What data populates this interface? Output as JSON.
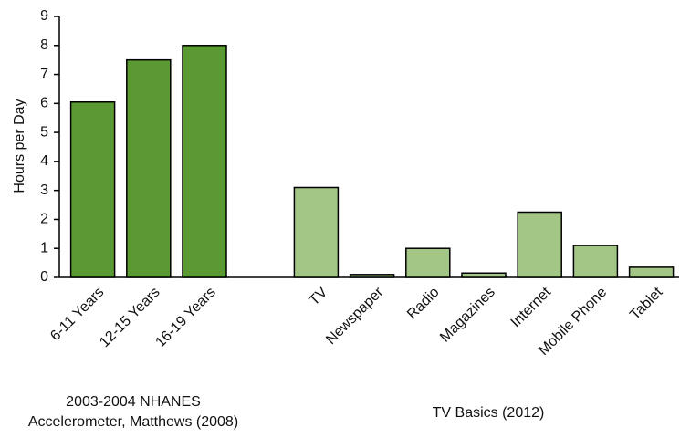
{
  "chart_data": {
    "type": "bar",
    "ylabel": "Hours per Day",
    "categories": [
      "6-11 Years",
      "12-15 Years",
      "16-19 Years",
      null,
      "TV",
      "Newspaper",
      "Radio",
      "Magazines",
      "Internet",
      "Mobile Phone",
      "Tablet"
    ],
    "values": [
      6.05,
      7.5,
      8.0,
      null,
      3.1,
      0.1,
      1.0,
      0.15,
      2.25,
      1.1,
      0.35
    ],
    "colors": [
      "#5b9a32",
      "#5b9a32",
      "#5b9a32",
      null,
      "#a3c586",
      "#a3c586",
      "#a3c586",
      "#a3c586",
      "#a3c586",
      "#a3c586",
      "#a3c586"
    ],
    "ylim": [
      0,
      9
    ],
    "yticks": [
      0,
      1,
      2,
      3,
      4,
      5,
      6,
      7,
      8,
      9
    ],
    "grid": false,
    "annotations": [
      [
        "2003-2004 NHANES",
        "Accelerometer, Matthews (2008)"
      ],
      [
        "TV Basics (2012)"
      ]
    ]
  }
}
